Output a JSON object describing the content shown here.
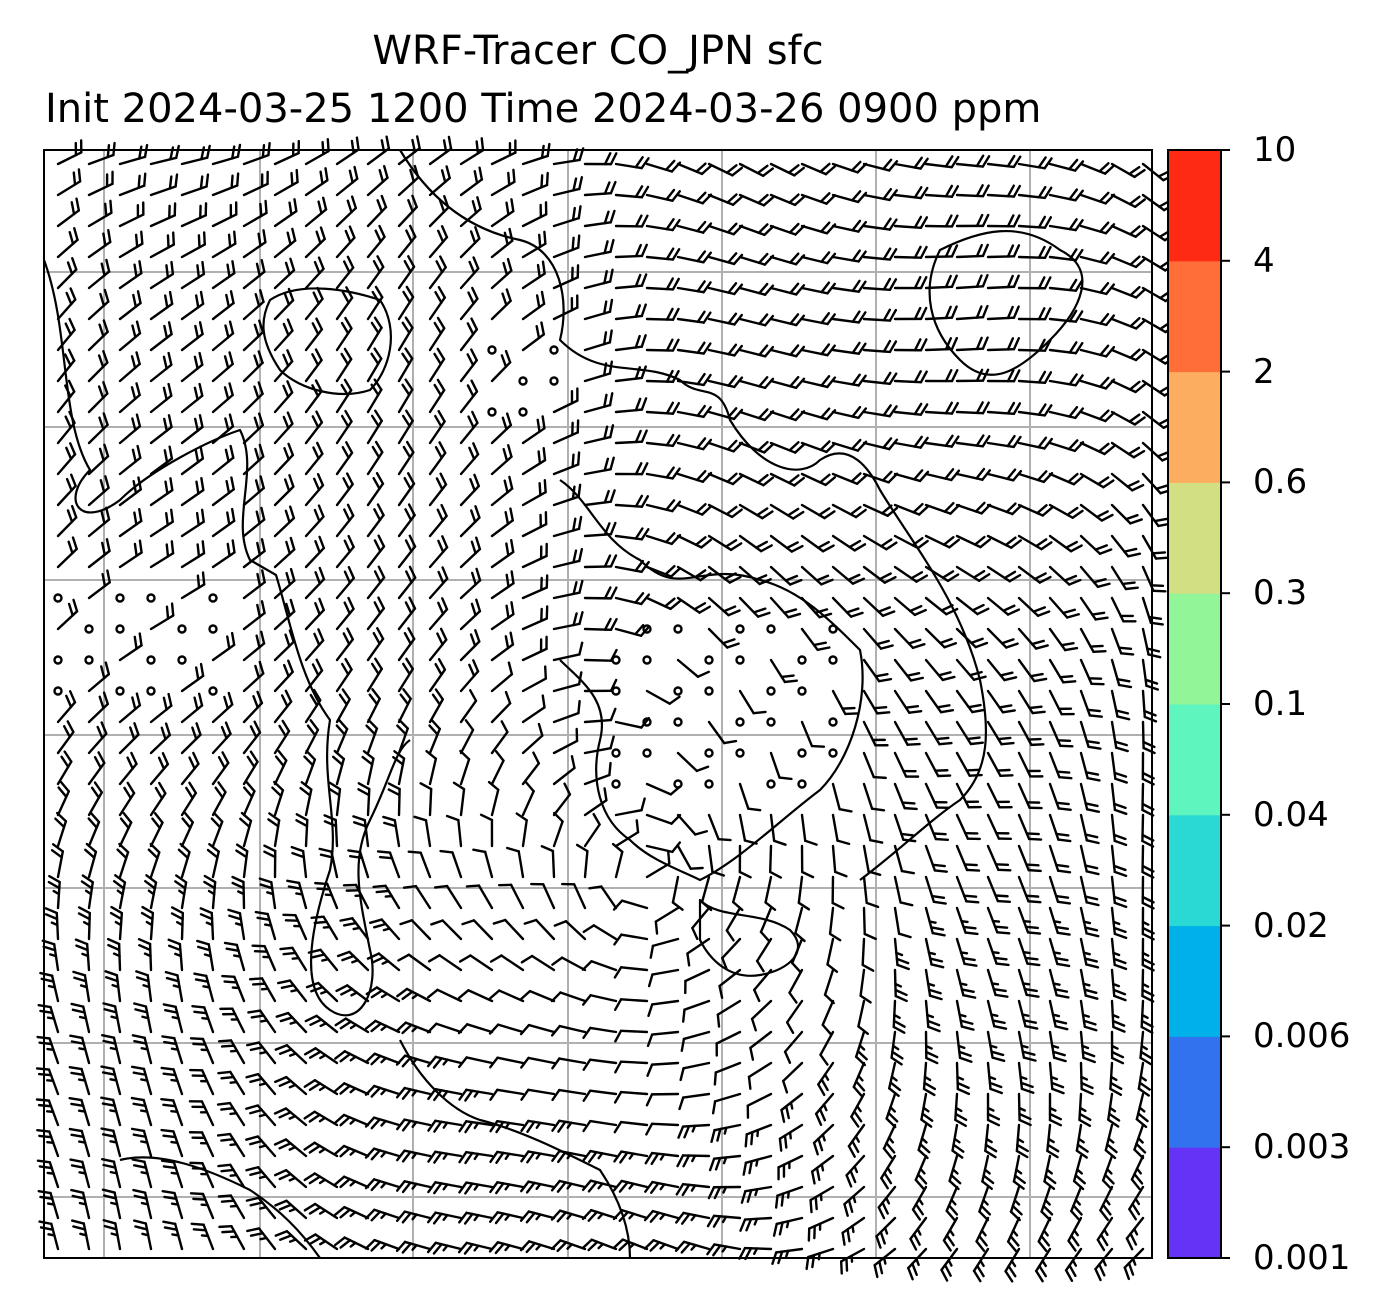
{
  "title": {
    "line1": "WRF-Tracer CO_JPN sfc",
    "line2": "Init 2024-03-25 1200 Time 2024-03-26 0900 ppm"
  },
  "colorbar": {
    "levels": [
      "0.001",
      "0.003",
      "0.006",
      "0.02",
      "0.04",
      "0.1",
      "0.3",
      "0.6",
      "2",
      "4",
      "10"
    ],
    "colors": [
      "#6433f5",
      "#3272ef",
      "#00b0e8",
      "#2ad8d4",
      "#5ff5be",
      "#92f597",
      "#d2e083",
      "#fdad5f",
      "#ff6e39",
      "#ff2a14"
    ]
  },
  "map": {
    "grid": true,
    "wind_barbs": true,
    "coastlines": true,
    "tracer_shading_visible": false
  }
}
